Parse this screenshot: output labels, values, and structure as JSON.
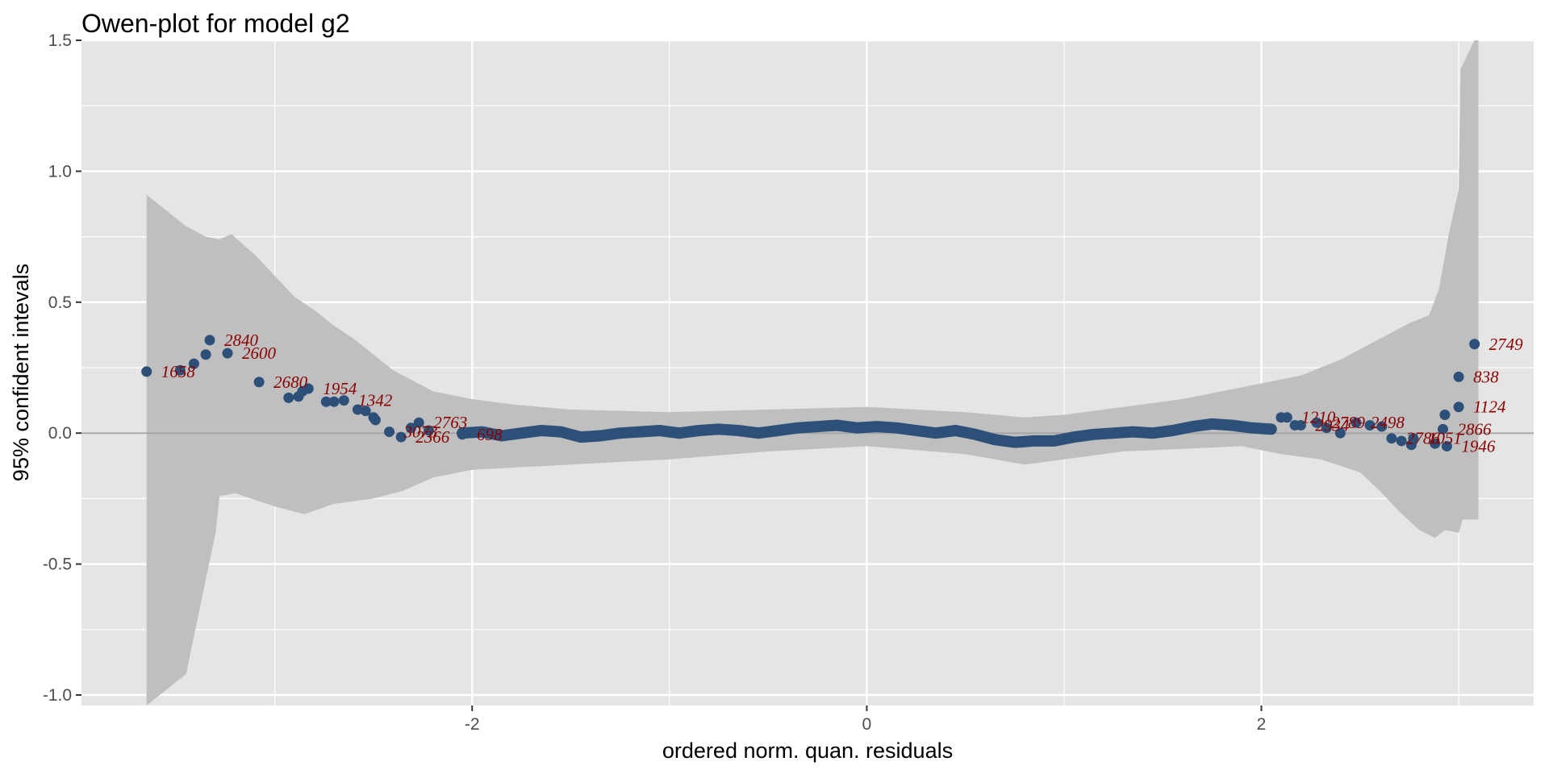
{
  "chart_data": {
    "type": "scatter",
    "title": "Owen-plot for model g2",
    "xlabel": "ordered norm. quan. residuals",
    "ylabel": "95% confident intevals",
    "xlim": [
      -3.98,
      3.38
    ],
    "ylim": [
      -1.04,
      1.5
    ],
    "x_ticks": [
      -2,
      0,
      2
    ],
    "x_tick_labels": [
      "-2",
      "0",
      "2"
    ],
    "y_ticks": [
      -1.0,
      -0.5,
      0.0,
      0.5,
      1.0,
      1.5
    ],
    "y_tick_labels": [
      "-1.0",
      "-0.5",
      "0.0",
      "0.5",
      "1.0",
      "1.5"
    ],
    "grid": true,
    "reference_line_y": 0,
    "colors": {
      "panel": "#e5e5e5",
      "grid": "#ffffff",
      "band": "#bfbfbf",
      "points": "#2d5079",
      "labels": "#8b0000",
      "refline": "#a6a6a6"
    },
    "band": {
      "upper": [
        [
          -3.65,
          0.91
        ],
        [
          -3.45,
          0.79
        ],
        [
          -3.35,
          0.75
        ],
        [
          -3.28,
          0.74
        ],
        [
          -3.22,
          0.76
        ],
        [
          -3.1,
          0.68
        ],
        [
          -3.0,
          0.6
        ],
        [
          -2.9,
          0.52
        ],
        [
          -2.8,
          0.47
        ],
        [
          -2.7,
          0.41
        ],
        [
          -2.6,
          0.36
        ],
        [
          -2.5,
          0.3
        ],
        [
          -2.4,
          0.24
        ],
        [
          -2.3,
          0.2
        ],
        [
          -2.2,
          0.16
        ],
        [
          -2.0,
          0.13
        ],
        [
          -1.8,
          0.11
        ],
        [
          -1.5,
          0.09
        ],
        [
          -1.0,
          0.08
        ],
        [
          -0.5,
          0.09
        ],
        [
          0.0,
          0.1
        ],
        [
          0.5,
          0.08
        ],
        [
          0.8,
          0.06
        ],
        [
          1.0,
          0.07
        ],
        [
          1.3,
          0.1
        ],
        [
          1.6,
          0.13
        ],
        [
          1.8,
          0.16
        ],
        [
          2.0,
          0.19
        ],
        [
          2.2,
          0.22
        ],
        [
          2.4,
          0.28
        ],
        [
          2.6,
          0.36
        ],
        [
          2.75,
          0.42
        ],
        [
          2.85,
          0.45
        ],
        [
          2.9,
          0.55
        ],
        [
          2.95,
          0.76
        ],
        [
          3.0,
          0.93
        ],
        [
          3.01,
          1.39
        ],
        [
          3.08,
          1.5
        ],
        [
          3.1,
          1.5
        ]
      ],
      "lower": [
        [
          -3.65,
          -1.04
        ],
        [
          -3.45,
          -0.92
        ],
        [
          -3.3,
          -0.38
        ],
        [
          -3.28,
          -0.24
        ],
        [
          -3.2,
          -0.23
        ],
        [
          -3.0,
          -0.28
        ],
        [
          -2.85,
          -0.31
        ],
        [
          -2.7,
          -0.27
        ],
        [
          -2.5,
          -0.25
        ],
        [
          -2.35,
          -0.22
        ],
        [
          -2.2,
          -0.17
        ],
        [
          -2.0,
          -0.14
        ],
        [
          -1.5,
          -0.12
        ],
        [
          -1.0,
          -0.1
        ],
        [
          -0.5,
          -0.07
        ],
        [
          0.0,
          -0.05
        ],
        [
          0.5,
          -0.08
        ],
        [
          0.8,
          -0.12
        ],
        [
          1.0,
          -0.1
        ],
        [
          1.3,
          -0.07
        ],
        [
          1.6,
          -0.06
        ],
        [
          1.9,
          -0.05
        ],
        [
          2.1,
          -0.08
        ],
        [
          2.3,
          -0.1
        ],
        [
          2.5,
          -0.15
        ],
        [
          2.6,
          -0.22
        ],
        [
          2.7,
          -0.3
        ],
        [
          2.8,
          -0.37
        ],
        [
          2.88,
          -0.4
        ],
        [
          2.93,
          -0.37
        ],
        [
          3.0,
          -0.38
        ],
        [
          3.02,
          -0.33
        ],
        [
          3.1,
          -0.33
        ]
      ]
    },
    "points": [
      {
        "x": -3.65,
        "y": 0.235,
        "label": "1658"
      },
      {
        "x": -3.48,
        "y": 0.24,
        "label": ""
      },
      {
        "x": -3.41,
        "y": 0.265,
        "label": ""
      },
      {
        "x": -3.35,
        "y": 0.3,
        "label": ""
      },
      {
        "x": -3.33,
        "y": 0.355,
        "label": "2840"
      },
      {
        "x": -3.24,
        "y": 0.305,
        "label": "2600"
      },
      {
        "x": -3.08,
        "y": 0.195,
        "label": "2680"
      },
      {
        "x": -2.93,
        "y": 0.135,
        "label": ""
      },
      {
        "x": -2.88,
        "y": 0.14,
        "label": ""
      },
      {
        "x": -2.86,
        "y": 0.16,
        "label": ""
      },
      {
        "x": -2.83,
        "y": 0.17,
        "label": "1954"
      },
      {
        "x": -2.74,
        "y": 0.12,
        "label": ""
      },
      {
        "x": -2.7,
        "y": 0.12,
        "label": ""
      },
      {
        "x": -2.65,
        "y": 0.125,
        "label": "1342"
      },
      {
        "x": -2.58,
        "y": 0.09,
        "label": ""
      },
      {
        "x": -2.54,
        "y": 0.085,
        "label": ""
      },
      {
        "x": -2.5,
        "y": 0.06,
        "label": ""
      },
      {
        "x": -2.49,
        "y": 0.05,
        "label": ""
      },
      {
        "x": -2.42,
        "y": 0.005,
        "label": "3073"
      },
      {
        "x": -2.36,
        "y": -0.015,
        "label": "2366"
      },
      {
        "x": -2.31,
        "y": 0.02,
        "label": ""
      },
      {
        "x": -2.27,
        "y": 0.04,
        "label": "2763"
      },
      {
        "x": -2.22,
        "y": 0.01,
        "label": ""
      },
      {
        "x": -2.05,
        "y": -0.005,
        "label": "698"
      },
      {
        "x": 2.02,
        "y": 0.015,
        "label": ""
      },
      {
        "x": 2.1,
        "y": 0.06,
        "label": ""
      },
      {
        "x": 2.13,
        "y": 0.06,
        "label": "1210"
      },
      {
        "x": 2.17,
        "y": 0.03,
        "label": ""
      },
      {
        "x": 2.2,
        "y": 0.03,
        "label": "2934"
      },
      {
        "x": 2.28,
        "y": 0.04,
        "label": "2789"
      },
      {
        "x": 2.33,
        "y": 0.02,
        "label": ""
      },
      {
        "x": 2.4,
        "y": 0.0,
        "label": ""
      },
      {
        "x": 2.48,
        "y": 0.04,
        "label": "2498"
      },
      {
        "x": 2.55,
        "y": 0.03,
        "label": ""
      },
      {
        "x": 2.61,
        "y": 0.025,
        "label": ""
      },
      {
        "x": 2.66,
        "y": -0.02,
        "label": "2786"
      },
      {
        "x": 2.71,
        "y": -0.03,
        "label": ""
      },
      {
        "x": 2.76,
        "y": -0.045,
        "label": ""
      },
      {
        "x": 2.77,
        "y": -0.02,
        "label": "1051"
      },
      {
        "x": 2.88,
        "y": -0.04,
        "label": ""
      },
      {
        "x": 2.92,
        "y": 0.015,
        "label": "2866"
      },
      {
        "x": 2.93,
        "y": 0.07,
        "label": ""
      },
      {
        "x": 2.94,
        "y": -0.05,
        "label": "1946"
      },
      {
        "x": 3.0,
        "y": 0.1,
        "label": "1124"
      },
      {
        "x": 3.0,
        "y": 0.215,
        "label": "838"
      },
      {
        "x": 3.08,
        "y": 0.34,
        "label": "2749"
      }
    ],
    "central_curve": [
      [
        -2.05,
        0.0
      ],
      [
        -1.95,
        0.005
      ],
      [
        -1.85,
        -0.01
      ],
      [
        -1.75,
        0.0
      ],
      [
        -1.65,
        0.01
      ],
      [
        -1.55,
        0.005
      ],
      [
        -1.45,
        -0.015
      ],
      [
        -1.35,
        -0.01
      ],
      [
        -1.25,
        0.0
      ],
      [
        -1.15,
        0.005
      ],
      [
        -1.05,
        0.01
      ],
      [
        -0.95,
        0.0
      ],
      [
        -0.85,
        0.01
      ],
      [
        -0.75,
        0.015
      ],
      [
        -0.65,
        0.01
      ],
      [
        -0.55,
        0.0
      ],
      [
        -0.45,
        0.01
      ],
      [
        -0.35,
        0.02
      ],
      [
        -0.25,
        0.025
      ],
      [
        -0.15,
        0.03
      ],
      [
        -0.05,
        0.02
      ],
      [
        0.05,
        0.025
      ],
      [
        0.15,
        0.02
      ],
      [
        0.25,
        0.01
      ],
      [
        0.35,
        0.0
      ],
      [
        0.45,
        0.01
      ],
      [
        0.55,
        -0.005
      ],
      [
        0.65,
        -0.025
      ],
      [
        0.75,
        -0.035
      ],
      [
        0.85,
        -0.03
      ],
      [
        0.95,
        -0.03
      ],
      [
        1.05,
        -0.015
      ],
      [
        1.15,
        -0.005
      ],
      [
        1.25,
        0.0
      ],
      [
        1.35,
        0.005
      ],
      [
        1.45,
        0.0
      ],
      [
        1.55,
        0.01
      ],
      [
        1.65,
        0.025
      ],
      [
        1.75,
        0.035
      ],
      [
        1.85,
        0.03
      ],
      [
        1.95,
        0.02
      ],
      [
        2.05,
        0.015
      ]
    ]
  }
}
